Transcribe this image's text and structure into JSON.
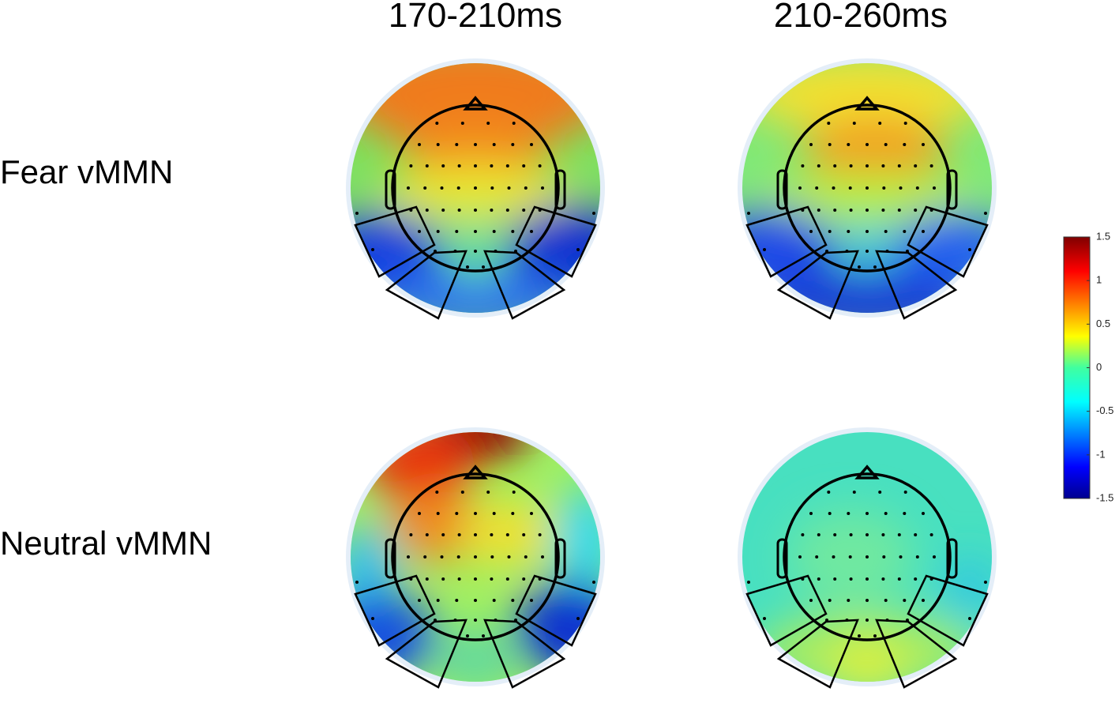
{
  "columns": [
    "170-210ms",
    "210-260ms"
  ],
  "rows": [
    "Fear vMMN",
    "Neutral vMMN"
  ],
  "colorbar": {
    "lim": [
      -1.5,
      1.5
    ],
    "ticks": [
      -1.5,
      -1,
      -0.5,
      0,
      0.5,
      1,
      1.5
    ]
  }
}
